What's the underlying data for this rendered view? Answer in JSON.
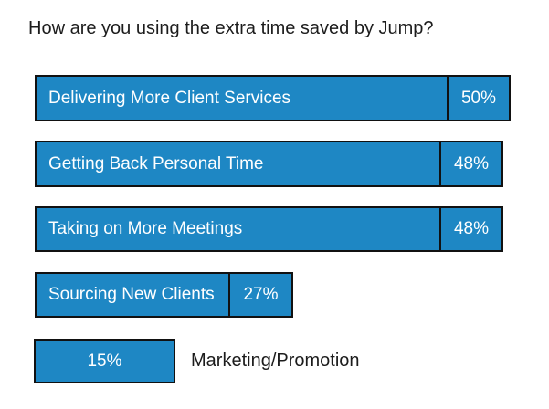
{
  "title": "How are you using the extra time saved by Jump?",
  "colors": {
    "bar_fill": "#1e87c4",
    "bar_border": "#111111",
    "bar_text": "#ffffff",
    "title_text": "#1c1c1c",
    "background": "#ffffff"
  },
  "chart_data": {
    "type": "bar",
    "orientation": "horizontal",
    "title": "How are you using the extra time saved by Jump?",
    "categories": [
      "Delivering More Client Services",
      "Getting Back Personal Time",
      "Taking on More Meetings",
      "Sourcing New Clients",
      "Marketing/Promotion"
    ],
    "values": [
      50,
      48,
      48,
      27,
      15
    ],
    "value_labels": [
      "50%",
      "48%",
      "48%",
      "27%",
      "15%"
    ],
    "unit": "percent",
    "xlim": [
      0,
      52
    ],
    "grid": false,
    "legend": false,
    "axes_shown": false,
    "bars": [
      {
        "label": "Delivering More Client Services",
        "value": 50,
        "value_label": "50%",
        "label_placement": "inside-left",
        "value_placement": "right-segment"
      },
      {
        "label": "Getting Back Personal Time",
        "value": 48,
        "value_label": "48%",
        "label_placement": "inside-left",
        "value_placement": "right-segment"
      },
      {
        "label": "Taking on More Meetings",
        "value": 48,
        "value_label": "48%",
        "label_placement": "inside-left",
        "value_placement": "right-segment"
      },
      {
        "label": "Sourcing New Clients",
        "value": 27,
        "value_label": "27%",
        "label_placement": "inside-left",
        "value_placement": "right-segment"
      },
      {
        "label": "Marketing/Promotion",
        "value": 15,
        "value_label": "15%",
        "label_placement": "outside-right",
        "value_placement": "center"
      }
    ]
  }
}
